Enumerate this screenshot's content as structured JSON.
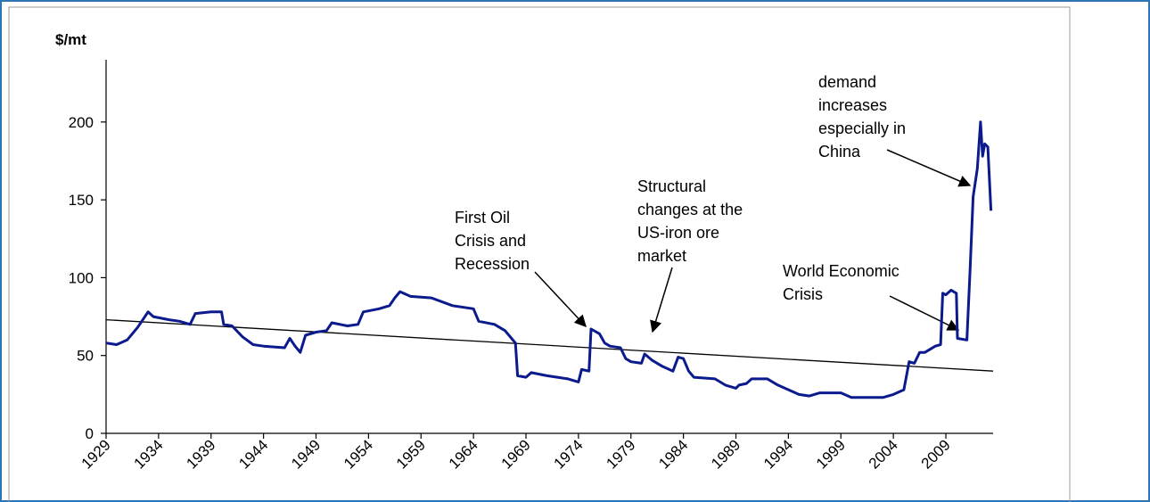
{
  "chart_data": {
    "type": "line",
    "ylabel": "$/mt",
    "xlim": [
      1929,
      2013.5
    ],
    "ylim": [
      0,
      240
    ],
    "xticks": [
      1929,
      1934,
      1939,
      1944,
      1949,
      1954,
      1959,
      1964,
      1969,
      1974,
      1979,
      1984,
      1989,
      1994,
      1999,
      2004,
      2009
    ],
    "yticks": [
      0,
      50,
      100,
      150,
      200
    ],
    "series": [
      {
        "color": "#0b1a8c",
        "x": [
          1929,
          1930,
          1931,
          1932,
          1933,
          1933.5,
          1935,
          1936,
          1937,
          1937.5,
          1939,
          1940,
          1940.2,
          1941,
          1942,
          1943,
          1944,
          1946,
          1946.5,
          1947,
          1947.5,
          1948,
          1949,
          1950,
          1950.5,
          1952,
          1953,
          1953.5,
          1955,
          1956,
          1956.5,
          1957,
          1958,
          1960,
          1962,
          1964,
          1964.5,
          1966,
          1967,
          1968,
          1968.2,
          1969,
          1969.5,
          1971,
          1972,
          1973,
          1974,
          1974.3,
          1975,
          1975.2,
          1976,
          1976.5,
          1977,
          1978,
          1978.5,
          1979,
          1980,
          1980.3,
          1981,
          1982,
          1983,
          1983.5,
          1984,
          1984.5,
          1985,
          1987,
          1988,
          1989,
          1989.3,
          1990,
          1990.5,
          1992,
          1993,
          1994,
          1995,
          1996,
          1997,
          1999,
          2000,
          2001,
          2003,
          2004,
          2005,
          2005.5,
          2006,
          2006.5,
          2007,
          2008,
          2008.5,
          2008.7,
          2009,
          2009.5,
          2010,
          2010.1,
          2011,
          2011.3,
          2011.6,
          2012,
          2012.3,
          2012.5,
          2012.7,
          2013,
          2013.3
        ],
        "values": [
          58,
          57,
          60,
          68,
          78,
          75,
          73,
          72,
          70,
          77,
          78,
          78,
          70,
          69,
          62,
          57,
          56,
          55,
          61,
          56,
          52,
          63,
          65,
          66,
          71,
          69,
          70,
          78,
          80,
          82,
          87,
          91,
          88,
          87,
          82,
          80,
          72,
          70,
          66,
          58,
          37,
          36,
          39,
          37,
          36,
          35,
          33,
          41,
          40,
          67,
          64,
          58,
          56,
          55,
          48,
          46,
          45,
          51,
          47,
          43,
          40,
          49,
          48,
          40,
          36,
          35,
          31,
          29,
          31,
          32,
          35,
          35,
          31,
          28,
          25,
          24,
          26,
          26,
          23,
          23,
          23,
          25,
          28,
          46,
          45,
          52,
          52,
          56,
          57,
          90,
          89,
          92,
          90,
          61,
          60,
          104,
          152,
          170,
          200,
          178,
          186,
          184,
          143
        ]
      },
      {
        "color": "#000000",
        "x": [
          1929,
          2013.5
        ],
        "values": [
          73,
          40
        ]
      }
    ],
    "annotations": [
      {
        "lines": [
          "First Oil",
          "Crisis and",
          "Recession"
        ]
      },
      {
        "lines": [
          "Structural",
          "changes at the",
          "US-iron ore",
          "market"
        ]
      },
      {
        "lines": [
          "demand",
          "increases",
          "especially in",
          "China"
        ]
      },
      {
        "lines": [
          "World Economic",
          "Crisis"
        ]
      }
    ]
  }
}
